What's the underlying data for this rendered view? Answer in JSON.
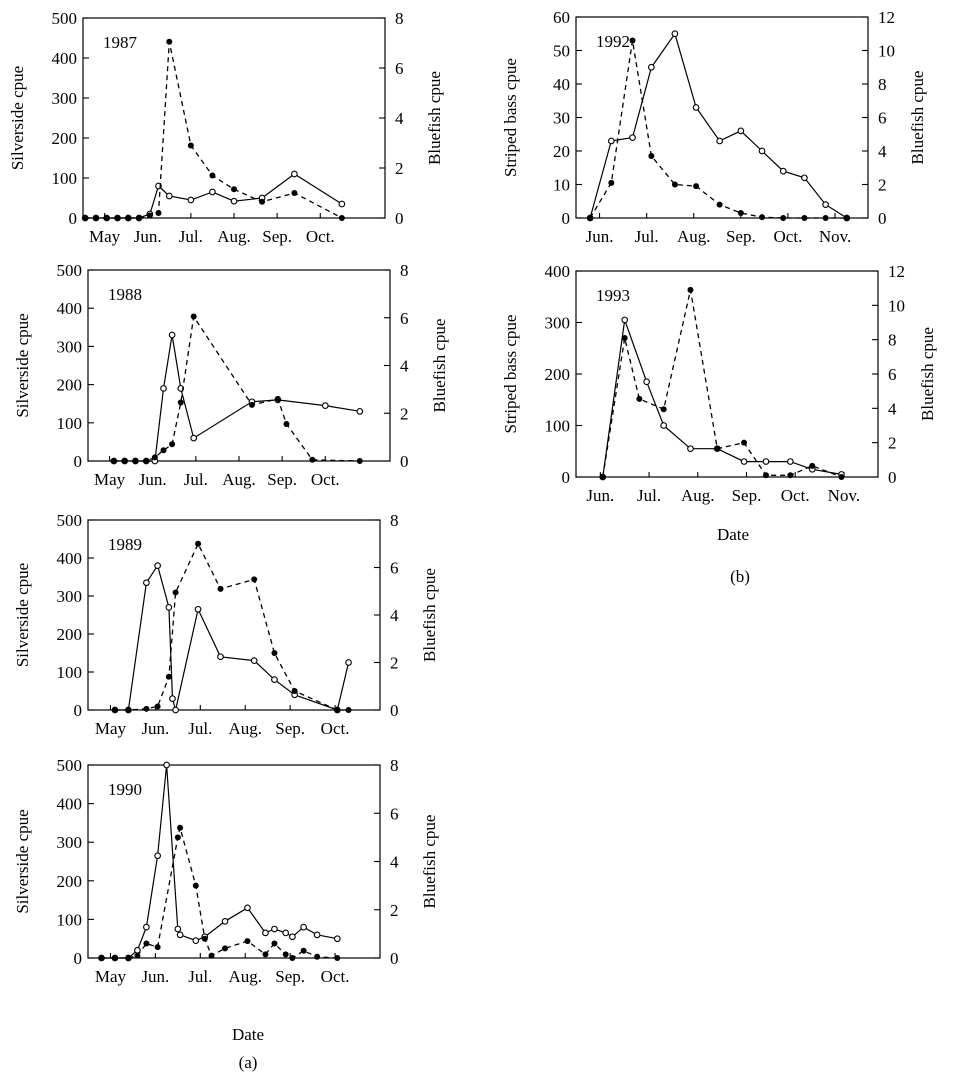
{
  "figure": {
    "labels": {
      "a": "(a)",
      "b": "(b)"
    },
    "date_label": "Date",
    "colors": {
      "ink": "#000000",
      "background": "#ffffff"
    }
  },
  "chart_data": [
    {
      "id": "p1987",
      "type": "line",
      "panel": "(a)",
      "title": "1987",
      "ylabel": "Silverside cpue",
      "ylabel_right": "Bluefish cpue",
      "xlabel": "",
      "x_ticks": [
        "May",
        "Jun.",
        "Jul.",
        "Aug.",
        "Sep.",
        "Oct."
      ],
      "x_tick_pos": [
        0.5,
        1.5,
        2.5,
        3.5,
        4.5,
        5.5
      ],
      "xlim": [
        0,
        7
      ],
      "ylim": [
        0,
        500
      ],
      "yticks": [
        0,
        100,
        200,
        300,
        400,
        500
      ],
      "y2lim": [
        0,
        8
      ],
      "y2ticks": [
        0,
        2,
        4,
        6,
        8
      ],
      "series": [
        {
          "axis": "left",
          "style": "solid",
          "marker": "open",
          "x": [
            0.05,
            0.3,
            0.55,
            0.8,
            1.05,
            1.3,
            1.55,
            1.75,
            2.0,
            2.5,
            3.0,
            3.5,
            4.15,
            4.9,
            6.0
          ],
          "y": [
            0,
            0,
            0,
            0,
            0,
            0,
            10,
            80,
            55,
            45,
            65,
            42,
            50,
            110,
            35
          ]
        },
        {
          "axis": "right",
          "style": "dashed",
          "marker": "filled",
          "x": [
            0.05,
            0.3,
            0.55,
            0.8,
            1.05,
            1.3,
            1.55,
            1.75,
            2.0,
            2.5,
            3.0,
            3.5,
            4.15,
            4.9,
            6.0
          ],
          "y": [
            0,
            0,
            0,
            0,
            0,
            0,
            0.1,
            0.2,
            7.05,
            2.9,
            1.7,
            1.15,
            0.65,
            1.0,
            0
          ]
        }
      ]
    },
    {
      "id": "p1988",
      "type": "line",
      "panel": "(a)",
      "title": "1988",
      "ylabel": "Silverside cpue",
      "ylabel_right": "Bluefish cpue",
      "xlabel": "",
      "x_ticks": [
        "May",
        "Jun.",
        "Jul.",
        "Aug.",
        "Sep.",
        "Oct."
      ],
      "x_tick_pos": [
        0.5,
        1.5,
        2.5,
        3.5,
        4.5,
        5.5
      ],
      "xlim": [
        0,
        7
      ],
      "ylim": [
        0,
        500
      ],
      "yticks": [
        0,
        100,
        200,
        300,
        400,
        500
      ],
      "y2lim": [
        0,
        8
      ],
      "y2ticks": [
        0,
        2,
        4,
        6,
        8
      ],
      "series": [
        {
          "axis": "left",
          "style": "solid",
          "marker": "open",
          "x": [
            0.6,
            0.85,
            1.1,
            1.35,
            1.55,
            1.75,
            1.95,
            2.15,
            2.45,
            3.8,
            4.4,
            5.5,
            6.3
          ],
          "y": [
            0,
            0,
            0,
            0,
            0,
            190,
            330,
            190,
            60,
            155,
            160,
            145,
            130
          ]
        },
        {
          "axis": "right",
          "style": "dashed",
          "marker": "filled",
          "x": [
            0.6,
            0.85,
            1.1,
            1.35,
            1.55,
            1.75,
            1.95,
            2.15,
            2.45,
            3.8,
            4.4,
            4.6,
            5.2,
            6.3
          ],
          "y": [
            0,
            0,
            0,
            0,
            0.15,
            0.45,
            0.7,
            2.45,
            6.05,
            2.35,
            2.6,
            1.55,
            0.05,
            0
          ]
        }
      ]
    },
    {
      "id": "p1989",
      "type": "line",
      "panel": "(a)",
      "title": "1989",
      "ylabel": "Silverside cpue",
      "ylabel_right": "Bluefish cpue",
      "xlabel": "",
      "x_ticks": [
        "May",
        "Jun.",
        "Jul.",
        "Aug.",
        "Sep.",
        "Oct."
      ],
      "x_tick_pos": [
        0.5,
        1.5,
        2.5,
        3.5,
        4.5,
        5.5
      ],
      "xlim": [
        0,
        6.5
      ],
      "ylim": [
        0,
        500
      ],
      "yticks": [
        0,
        100,
        200,
        300,
        400,
        500
      ],
      "y2lim": [
        0,
        8
      ],
      "y2ticks": [
        0,
        2,
        4,
        6,
        8
      ],
      "series": [
        {
          "axis": "left",
          "style": "solid",
          "marker": "open",
          "x": [
            0.6,
            0.9,
            1.3,
            1.55,
            1.8,
            1.88,
            1.95,
            2.45,
            2.95,
            3.7,
            4.15,
            4.6,
            5.55,
            5.8
          ],
          "y": [
            0,
            0,
            335,
            380,
            270,
            30,
            0,
            265,
            140,
            130,
            80,
            40,
            0,
            125
          ]
        },
        {
          "axis": "right",
          "style": "dashed",
          "marker": "filled",
          "x": [
            0.6,
            0.9,
            1.3,
            1.55,
            1.8,
            1.95,
            2.45,
            2.95,
            3.7,
            4.15,
            4.6,
            5.55,
            5.8
          ],
          "y": [
            0,
            0,
            0.05,
            0.15,
            1.4,
            4.95,
            7.0,
            5.1,
            5.5,
            2.4,
            0.8,
            0,
            0
          ]
        }
      ]
    },
    {
      "id": "p1990",
      "type": "line",
      "panel": "(a)",
      "title": "1990",
      "ylabel": "Silverside cpue",
      "ylabel_right": "Bluefish cpue",
      "xlabel": "Date",
      "x_ticks": [
        "May",
        "Jun.",
        "Jul.",
        "Aug.",
        "Sep.",
        "Oct."
      ],
      "x_tick_pos": [
        0.5,
        1.5,
        2.5,
        3.5,
        4.5,
        5.5
      ],
      "xlim": [
        0,
        6.5
      ],
      "ylim": [
        0,
        500
      ],
      "yticks": [
        0,
        100,
        200,
        300,
        400,
        500
      ],
      "y2lim": [
        0,
        8
      ],
      "y2ticks": [
        0,
        2,
        4,
        6,
        8
      ],
      "series": [
        {
          "axis": "left",
          "style": "solid",
          "marker": "open",
          "x": [
            0.3,
            0.6,
            0.9,
            1.1,
            1.3,
            1.55,
            1.75,
            2.0,
            2.05,
            2.4,
            2.6,
            3.05,
            3.55,
            3.95,
            4.15,
            4.4,
            4.55,
            4.8,
            5.1,
            5.55
          ],
          "y": [
            0,
            0,
            0,
            20,
            80,
            265,
            500,
            75,
            60,
            45,
            55,
            95,
            130,
            65,
            75,
            65,
            55,
            80,
            60,
            50
          ]
        },
        {
          "axis": "right",
          "style": "dashed",
          "marker": "filled",
          "x": [
            0.3,
            0.6,
            0.9,
            1.1,
            1.3,
            1.55,
            2.0,
            2.05,
            2.4,
            2.6,
            2.75,
            3.05,
            3.55,
            3.95,
            4.15,
            4.4,
            4.55,
            4.8,
            5.1,
            5.55
          ],
          "y": [
            0,
            0,
            0,
            0.1,
            0.6,
            0.45,
            5.0,
            5.4,
            3.0,
            0.8,
            0.1,
            0.4,
            0.7,
            0.15,
            0.6,
            0.15,
            0,
            0.3,
            0.05,
            0
          ]
        }
      ]
    },
    {
      "id": "p1992",
      "type": "line",
      "panel": "(b)",
      "title": "1992",
      "ylabel": "Striped bass cpue",
      "ylabel_right": "Bluefish cpue",
      "xlabel": "",
      "x_ticks": [
        "Jun.",
        "Jul.",
        "Aug.",
        "Sep.",
        "Oct.",
        "Nov."
      ],
      "x_tick_pos": [
        0.5,
        1.5,
        2.5,
        3.5,
        4.5,
        5.5
      ],
      "xlim": [
        0,
        6.2
      ],
      "ylim": [
        0,
        60
      ],
      "yticks": [
        0,
        10,
        20,
        30,
        40,
        50,
        60
      ],
      "y2lim": [
        0,
        12
      ],
      "y2ticks": [
        0,
        2,
        4,
        6,
        8,
        10,
        12
      ],
      "series": [
        {
          "axis": "left",
          "style": "solid",
          "marker": "open",
          "x": [
            0.3,
            0.75,
            1.2,
            1.6,
            2.1,
            2.55,
            3.05,
            3.5,
            3.95,
            4.4,
            4.85,
            5.3,
            5.75
          ],
          "y": [
            0,
            23,
            24,
            45,
            55,
            33,
            23,
            26,
            20,
            14,
            12,
            4,
            0
          ]
        },
        {
          "axis": "right",
          "style": "dashed",
          "marker": "filled",
          "x": [
            0.3,
            0.75,
            1.2,
            1.6,
            2.1,
            2.55,
            3.05,
            3.5,
            3.95,
            4.4,
            4.85,
            5.3,
            5.75
          ],
          "y": [
            0,
            2.1,
            10.6,
            3.7,
            2.0,
            1.9,
            0.8,
            0.3,
            0.05,
            0,
            0,
            0,
            0
          ]
        }
      ]
    },
    {
      "id": "p1993",
      "type": "line",
      "panel": "(b)",
      "title": "1993",
      "ylabel": "Striped bass cpue",
      "ylabel_right": "Bluefish cpue",
      "xlabel": "Date",
      "x_ticks": [
        "Jun.",
        "Jul.",
        "Aug.",
        "Sep.",
        "Oct.",
        "Nov."
      ],
      "x_tick_pos": [
        0.5,
        1.5,
        2.5,
        3.5,
        4.5,
        5.5
      ],
      "xlim": [
        0,
        6.2
      ],
      "ylim": [
        0,
        400
      ],
      "yticks": [
        0,
        100,
        200,
        300,
        400
      ],
      "y2lim": [
        0,
        12
      ],
      "y2ticks": [
        0,
        2,
        4,
        6,
        8,
        10,
        12
      ],
      "series": [
        {
          "axis": "left",
          "style": "solid",
          "marker": "open",
          "x": [
            0.55,
            1.0,
            1.45,
            1.8,
            2.35,
            2.9,
            3.45,
            3.9,
            4.4,
            4.85,
            5.45
          ],
          "y": [
            0,
            305,
            185,
            100,
            55,
            55,
            30,
            30,
            30,
            15,
            5
          ]
        },
        {
          "axis": "right",
          "style": "dashed",
          "marker": "filled",
          "x": [
            0.55,
            1.0,
            1.3,
            1.8,
            2.35,
            2.9,
            3.45,
            3.9,
            4.4,
            4.85,
            5.45
          ],
          "y": [
            0,
            8.1,
            4.55,
            3.95,
            10.9,
            1.65,
            2.0,
            0.1,
            0.1,
            0.65,
            0
          ]
        }
      ]
    }
  ]
}
